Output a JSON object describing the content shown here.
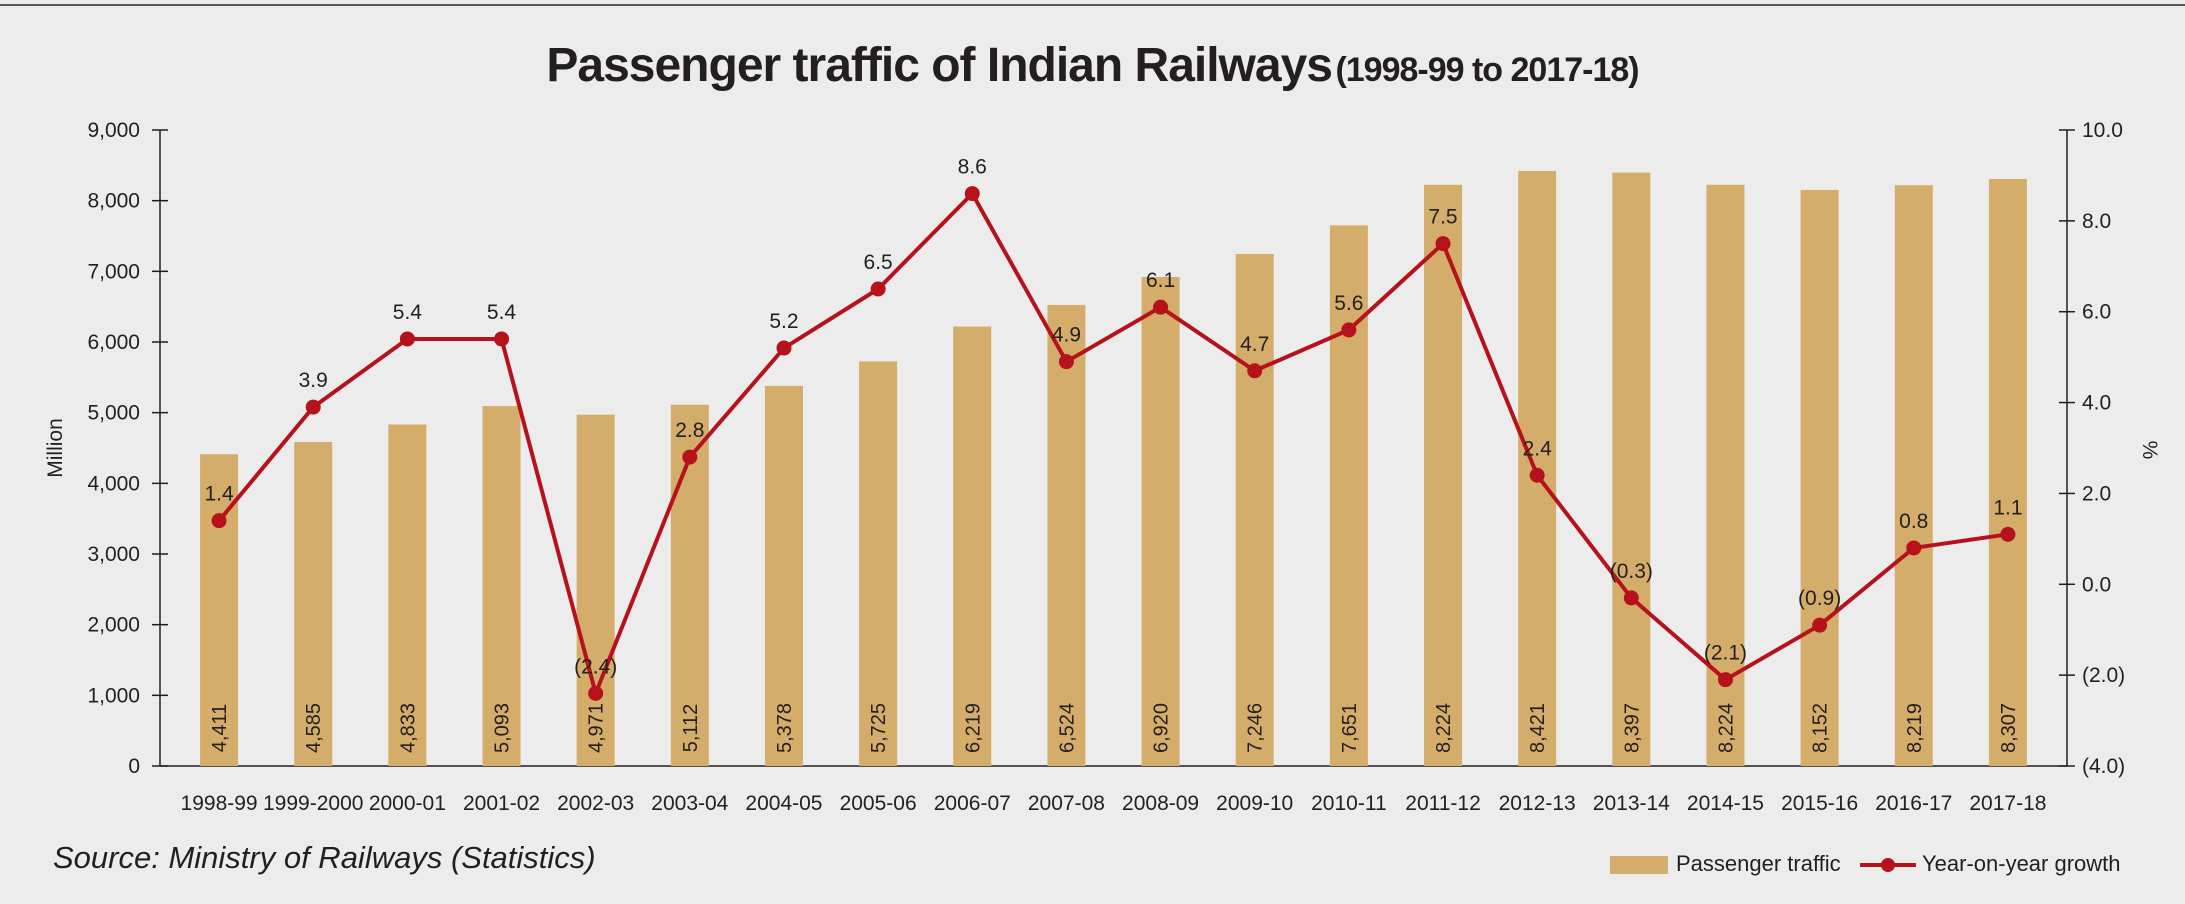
{
  "chart_data": {
    "type": "bar",
    "title": "Passenger traffic of Indian Railways",
    "subtitle": "(1998-99 to 2017-18)",
    "ylabel_left": "Million",
    "ylabel_right": "%",
    "y_left_ticks": [
      "0",
      "1,000",
      "2,000",
      "3,000",
      "4,000",
      "5,000",
      "6,000",
      "7,000",
      "8,000",
      "9,000"
    ],
    "y_right_ticks": [
      "(4.0)",
      "(2.0)",
      "0.0",
      "2.0",
      "4.0",
      "6.0",
      "8.0",
      "10.0"
    ],
    "ylim_left": [
      0,
      9000
    ],
    "ylim_right": [
      -4,
      10
    ],
    "categories": [
      "1998-99",
      "1999-2000",
      "2000-01",
      "2001-02",
      "2002-03",
      "2003-04",
      "2004-05",
      "2005-06",
      "2006-07",
      "2007-08",
      "2008-09",
      "2009-10",
      "2010-11",
      "2011-12",
      "2012-13",
      "2013-14",
      "2014-15",
      "2015-16",
      "2016-17",
      "2017-18"
    ],
    "series": [
      {
        "name": "Passenger traffic",
        "type": "bar",
        "axis": "left",
        "color": "#d4ad6a",
        "values": [
          4411,
          4585,
          4833,
          5093,
          4971,
          5112,
          5378,
          5725,
          6219,
          6524,
          6920,
          7246,
          7651,
          8224,
          8421,
          8397,
          8224,
          8152,
          8219,
          8307
        ],
        "labels": [
          "4,411",
          "4,585",
          "4,833",
          "5,093",
          "4,971",
          "5,112",
          "5,378",
          "5,725",
          "6,219",
          "6,524",
          "6,920",
          "7,246",
          "7,651",
          "8,224",
          "8,421",
          "8,397",
          "8,224",
          "8,152",
          "8,219",
          "8,307"
        ]
      },
      {
        "name": "Year-on-year  growth",
        "type": "line",
        "axis": "right",
        "color": "#b5121b",
        "values": [
          1.4,
          3.9,
          5.4,
          5.4,
          -2.4,
          2.8,
          5.2,
          6.5,
          8.6,
          4.9,
          6.1,
          4.7,
          5.6,
          7.5,
          2.4,
          -0.3,
          -2.1,
          -0.9,
          0.8,
          1.1
        ],
        "labels": [
          "1.4",
          "3.9",
          "5.4",
          "5.4",
          "(2.4)",
          "2.8",
          "5.2",
          "6.5",
          "8.6",
          "4.9",
          "6.1",
          "4.7",
          "5.6",
          "7.5",
          "2.4",
          "(0.3)",
          "(2.1)",
          "(0.9)",
          "0.8",
          "1.1"
        ]
      }
    ],
    "legend_placement": "bottom-right",
    "grid": false
  },
  "source": "Source: Ministry of Railways (Statistics)",
  "colors": {
    "background": "#ececec",
    "bar": "#d4ad6a",
    "line": "#b5121b",
    "text": "#231f20"
  }
}
